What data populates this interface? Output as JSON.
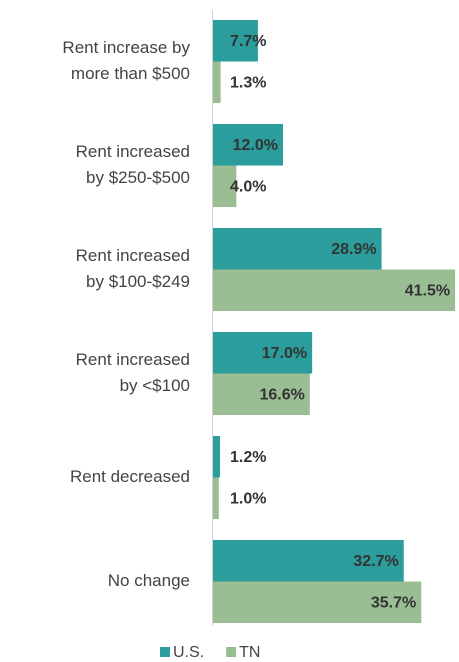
{
  "chart_data": {
    "type": "hbar",
    "categories": [
      [
        "Rent increase by",
        "more than $500"
      ],
      [
        "Rent increased",
        "by $250-$500"
      ],
      [
        "Rent increased",
        "by $100-$249"
      ],
      [
        "Rent increased",
        "by <$100"
      ],
      [
        "Rent decreased"
      ],
      [
        "No change"
      ]
    ],
    "series": [
      {
        "name": "U.S.",
        "color": "#2a9d9c",
        "values": [
          7.7,
          12.0,
          28.9,
          17.0,
          1.2,
          32.7
        ],
        "value_labels": [
          "7.7%",
          "12.0%",
          "28.9%",
          "17.0%",
          "1.2%",
          "32.7%"
        ]
      },
      {
        "name": "TN",
        "color": "#9bbd94",
        "values": [
          1.3,
          4.0,
          41.5,
          16.6,
          1.0,
          35.7
        ],
        "value_labels": [
          "1.3%",
          "4.0%",
          "41.5%",
          "16.6%",
          "1.0%",
          "35.7%"
        ]
      }
    ],
    "xlim": [
      0,
      42
    ],
    "legend": "bottom"
  }
}
